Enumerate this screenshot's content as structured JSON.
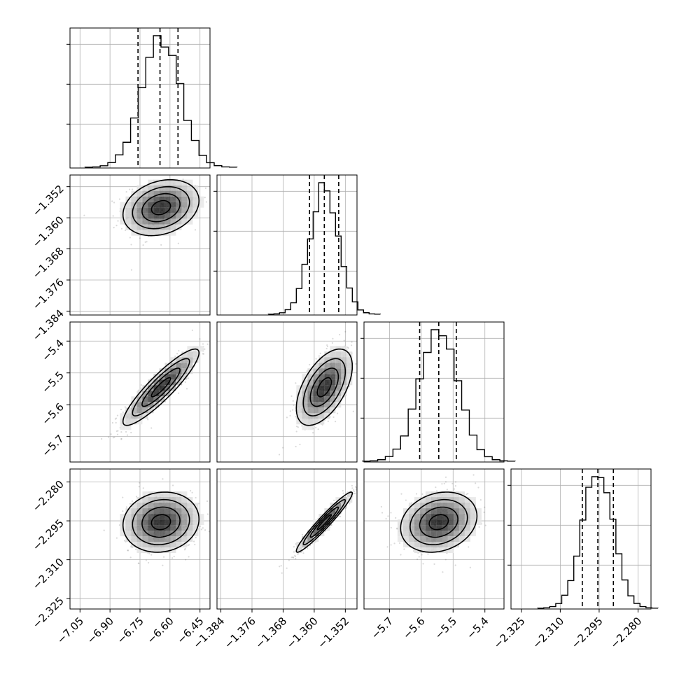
{
  "chart_data": {
    "type": "corner",
    "grid": true,
    "parameters": [
      {
        "range": [
          -7.1,
          -6.4
        ],
        "ticks": [
          -7.05,
          -6.9,
          -6.75,
          -6.6,
          -6.45
        ],
        "tick_labels": [
          "−7.05",
          "−6.90",
          "−6.75",
          "−6.60",
          "−6.45"
        ],
        "mean": -6.645,
        "sigma": 0.095,
        "quantiles": [
          -6.76,
          -6.65,
          -6.56
        ]
      },
      {
        "range": [
          -1.385,
          -1.349
        ],
        "ticks": [
          -1.384,
          -1.376,
          -1.368,
          -1.36,
          -1.352
        ],
        "tick_labels": [
          "−1.384",
          "−1.376",
          "−1.368",
          "−1.360",
          "−1.352"
        ],
        "mean": -1.3574,
        "sigma": 0.0036,
        "quantiles": [
          -1.3612,
          -1.3574,
          -1.3537
        ]
      },
      {
        "range": [
          -5.78,
          -5.34
        ],
        "ticks": [
          -5.7,
          -5.6,
          -5.5,
          -5.4
        ],
        "tick_labels": [
          "−5.7",
          "−5.6",
          "−5.5",
          "−5.4"
        ],
        "mean": -5.545,
        "sigma": 0.06,
        "quantiles": [
          -5.605,
          -5.545,
          -5.49
        ]
      },
      {
        "range": [
          -2.329,
          -2.275
        ],
        "ticks": [
          -2.325,
          -2.31,
          -2.295,
          -2.28
        ],
        "tick_labels": [
          "−2.325",
          "−2.310",
          "−2.295",
          "−2.280"
        ],
        "mean": -2.2955,
        "sigma": 0.0058,
        "quantiles": [
          -2.3015,
          -2.2955,
          -2.2895
        ]
      }
    ],
    "correlations": {
      "1-0": 0.25,
      "2-0": 0.9,
      "2-1": 0.55,
      "3-0": 0.1,
      "3-1": 0.96,
      "3-2": 0.2
    }
  }
}
